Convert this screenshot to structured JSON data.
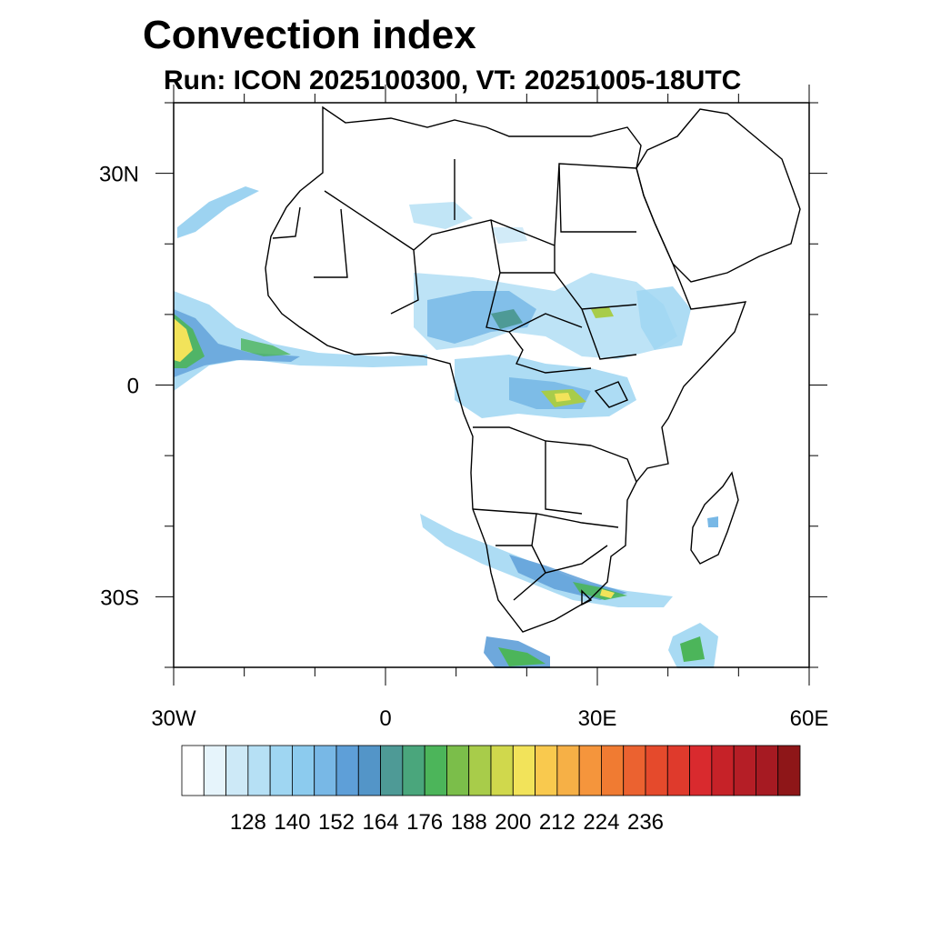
{
  "title": "Convection index",
  "subtitle": "Run: ICON 2025100300,  VT: 20251005-18UTC",
  "map": {
    "region": "Africa",
    "lon_range": [
      -30,
      60
    ],
    "lat_range": [
      -40,
      40
    ],
    "x_ticks": [
      {
        "value": -30,
        "label": "30W"
      },
      {
        "value": 0,
        "label": "0"
      },
      {
        "value": 30,
        "label": "30E"
      },
      {
        "value": 60,
        "label": "60E"
      }
    ],
    "y_ticks": [
      {
        "value": 30,
        "label": "30N"
      },
      {
        "value": 0,
        "label": "0"
      },
      {
        "value": -30,
        "label": "30S"
      }
    ]
  },
  "colorbar": {
    "labels": [
      "128",
      "140",
      "152",
      "164",
      "176",
      "188",
      "200",
      "212",
      "224",
      "236"
    ],
    "colors": [
      "#ffffff",
      "#e6f4fb",
      "#cde9f7",
      "#b6e0f5",
      "#9fd6f2",
      "#8ccbee",
      "#78b8e6",
      "#5e9fd8",
      "#5395c8",
      "#4e9a96",
      "#4aa67c",
      "#4cb55a",
      "#7bbe4a",
      "#a8cc4a",
      "#d0d84c",
      "#f2e35a",
      "#f9c94e",
      "#f6b046",
      "#f5953c",
      "#f07b32",
      "#eb6230",
      "#e54a2c",
      "#df3a2c",
      "#d92a2e",
      "#c62228",
      "#b51e26",
      "#a61a22",
      "#8e1618"
    ]
  },
  "legend_colors": {
    "light_blue": "#9fd6f2",
    "blue": "#5e9fd8",
    "green": "#4cb55a",
    "yellow": "#f2e35a"
  }
}
